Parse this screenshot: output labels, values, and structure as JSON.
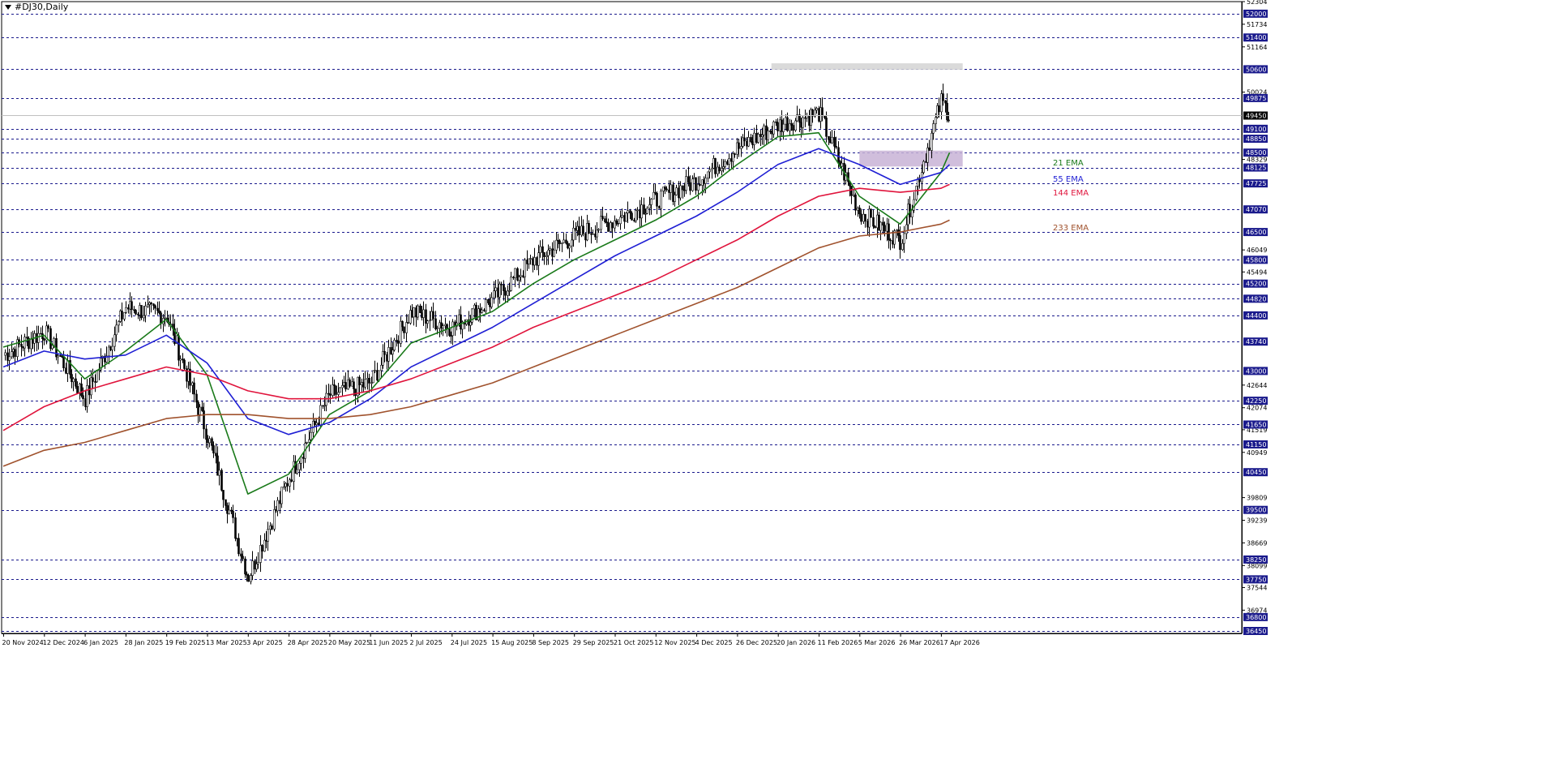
{
  "window": {
    "title": "#DJ30,Daily"
  },
  "chart_data": {
    "type": "candlestick",
    "ylim": [
      36450,
      52304
    ],
    "current_price": 49450,
    "price_scale_ticks": [
      52304,
      51734,
      51164,
      50024,
      48329,
      46049,
      45494,
      42644,
      42074,
      41519,
      40949,
      39809,
      39239,
      38669,
      38099,
      37544,
      36974
    ],
    "level_lines": [
      {
        "value": 52000,
        "label": "52000"
      },
      {
        "value": 51400,
        "label": "51400"
      },
      {
        "value": 50600,
        "label": "50600"
      },
      {
        "value": 49875,
        "label": "49875"
      },
      {
        "value": 49100,
        "label": "49100"
      },
      {
        "value": 48850,
        "label": "48850"
      },
      {
        "value": 48500,
        "label": "48500"
      },
      {
        "value": 48125,
        "label": "48125"
      },
      {
        "value": 47725,
        "label": "47725"
      },
      {
        "value": 47070,
        "label": "47070"
      },
      {
        "value": 46500,
        "label": "46500"
      },
      {
        "value": 45800,
        "label": "45800"
      },
      {
        "value": 45200,
        "label": "45200"
      },
      {
        "value": 44820,
        "label": "44820"
      },
      {
        "value": 44400,
        "label": "44400"
      },
      {
        "value": 43740,
        "label": "43740"
      },
      {
        "value": 43000,
        "label": "43000"
      },
      {
        "value": 42250,
        "label": "42250"
      },
      {
        "value": 41650,
        "label": "41650"
      },
      {
        "value": 41150,
        "label": "41150"
      },
      {
        "value": 40450,
        "label": "40450"
      },
      {
        "value": 39500,
        "label": "39500"
      },
      {
        "value": 38250,
        "label": "38250"
      },
      {
        "value": 37750,
        "label": "37750"
      },
      {
        "value": 36800,
        "label": "36800"
      },
      {
        "value": 36450,
        "label": "36450"
      }
    ],
    "x_labels": [
      "20 Nov 2024",
      "12 Dec 2024",
      "6 Jan 2025",
      "28 Jan 2025",
      "19 Feb 2025",
      "13 Mar 2025",
      "3 Apr 2025",
      "28 Apr 2025",
      "20 May 2025",
      "11 Jun 2025",
      "2 Jul 2025",
      "24 Jul 2025",
      "15 Aug 2025",
      "8 Sep 2025",
      "29 Sep 2025",
      "21 Oct 2025",
      "12 Nov 2025",
      "4 Dec 2025",
      "26 Dec 2025",
      "20 Jan 2026",
      "11 Feb 2026",
      "5 Mar 2026",
      "26 Mar 2026",
      "17 Apr 2026"
    ],
    "close_anchors": [
      {
        "date": "20 Nov 2024",
        "close": 43400
      },
      {
        "date": "12 Dec 2024",
        "close": 44000
      },
      {
        "date": "6 Jan 2025",
        "close": 42300
      },
      {
        "date": "28 Jan 2025",
        "close": 44600
      },
      {
        "date": "19 Feb 2025",
        "close": 44400
      },
      {
        "date": "13 Mar 2025",
        "close": 41400
      },
      {
        "date": "3 Apr 2025",
        "close": 37800
      },
      {
        "date": "28 Apr 2025",
        "close": 40300
      },
      {
        "date": "20 May 2025",
        "close": 42400
      },
      {
        "date": "11 Jun 2025",
        "close": 42700
      },
      {
        "date": "2 Jul 2025",
        "close": 44500
      },
      {
        "date": "24 Jul 2025",
        "close": 44100
      },
      {
        "date": "15 Aug 2025",
        "close": 44800
      },
      {
        "date": "8 Sep 2025",
        "close": 45800
      },
      {
        "date": "29 Sep 2025",
        "close": 46400
      },
      {
        "date": "21 Oct 2025",
        "close": 46800
      },
      {
        "date": "12 Nov 2025",
        "close": 47300
      },
      {
        "date": "4 Dec 2025",
        "close": 47800
      },
      {
        "date": "26 Dec 2025",
        "close": 48600
      },
      {
        "date": "20 Jan 2026",
        "close": 49200
      },
      {
        "date": "11 Feb 2026",
        "close": 49500
      },
      {
        "date": "5 Mar 2026",
        "close": 47000
      },
      {
        "date": "26 Mar 2026",
        "close": 46300
      },
      {
        "date": "17 Apr 2026",
        "close": 49800
      },
      {
        "date": "23 Apr 2026",
        "close": 49450
      }
    ],
    "series": [
      {
        "name": "21 EMA",
        "color": "#1a7a1a",
        "values": [
          43600,
          43900,
          42800,
          43500,
          44300,
          42900,
          39900,
          40400,
          41900,
          42500,
          43700,
          44100,
          44500,
          45200,
          45800,
          46300,
          46800,
          47400,
          48200,
          48900,
          49000,
          47400,
          46700,
          48000,
          48500
        ]
      },
      {
        "name": "55 EMA",
        "color": "#1f1fd4",
        "values": [
          43100,
          43500,
          43300,
          43400,
          43900,
          43200,
          41800,
          41400,
          41700,
          42300,
          43100,
          43600,
          44100,
          44700,
          45300,
          45900,
          46400,
          46900,
          47500,
          48200,
          48600,
          48200,
          47700,
          48000,
          48200
        ]
      },
      {
        "name": "144 EMA",
        "color": "#e0143c",
        "values": [
          41500,
          42100,
          42500,
          42800,
          43100,
          42900,
          42500,
          42300,
          42300,
          42500,
          42800,
          43200,
          43600,
          44100,
          44500,
          44900,
          45300,
          45800,
          46300,
          46900,
          47400,
          47600,
          47500,
          47600,
          47700
        ]
      },
      {
        "name": "233 EMA",
        "color": "#a0522d",
        "values": [
          40600,
          41000,
          41200,
          41500,
          41800,
          41900,
          41900,
          41800,
          41800,
          41900,
          42100,
          42400,
          42700,
          43100,
          43500,
          43900,
          44300,
          44700,
          45100,
          45600,
          46100,
          46400,
          46500,
          46700,
          46800
        ]
      }
    ],
    "zones": [
      {
        "x_from": "20 Jan 2026",
        "x_to": "23 Apr 2026",
        "y_from": 50600,
        "y_to": 50750,
        "color": "#d3d3d3"
      },
      {
        "x_from": "5 Mar 2026",
        "x_to": "23 Apr 2026",
        "y_from": 48150,
        "y_to": 48550,
        "color": "#c8b3d6"
      }
    ],
    "grid": false
  }
}
